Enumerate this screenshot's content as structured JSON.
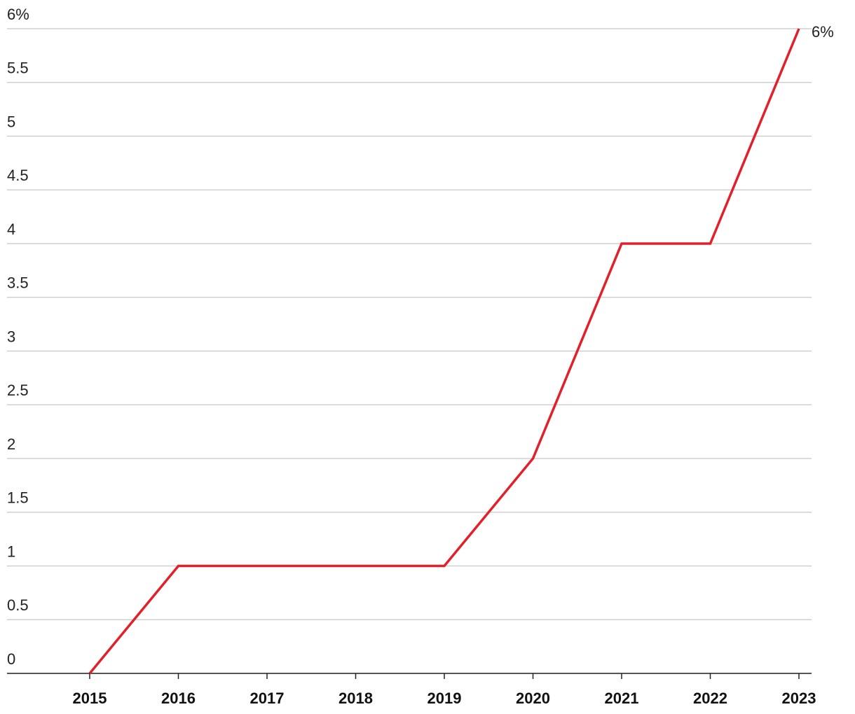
{
  "chart_data": {
    "type": "line",
    "categories": [
      "2015",
      "2016",
      "2017",
      "2018",
      "2019",
      "2020",
      "2021",
      "2022",
      "2023"
    ],
    "series": [
      {
        "color": "#e3202a",
        "values": [
          0,
          1,
          1,
          1,
          1,
          2,
          4,
          4,
          6
        ],
        "value_labels": [
          null,
          null,
          null,
          null,
          null,
          null,
          null,
          null,
          "6%"
        ]
      }
    ],
    "ylim": [
      0,
      6
    ],
    "yticks": [
      0,
      0.5,
      1,
      1.5,
      2,
      2.5,
      3,
      3.5,
      4,
      4.5,
      5,
      5.5,
      {
        "value": 6,
        "label": "6%"
      }
    ],
    "grid": true
  }
}
